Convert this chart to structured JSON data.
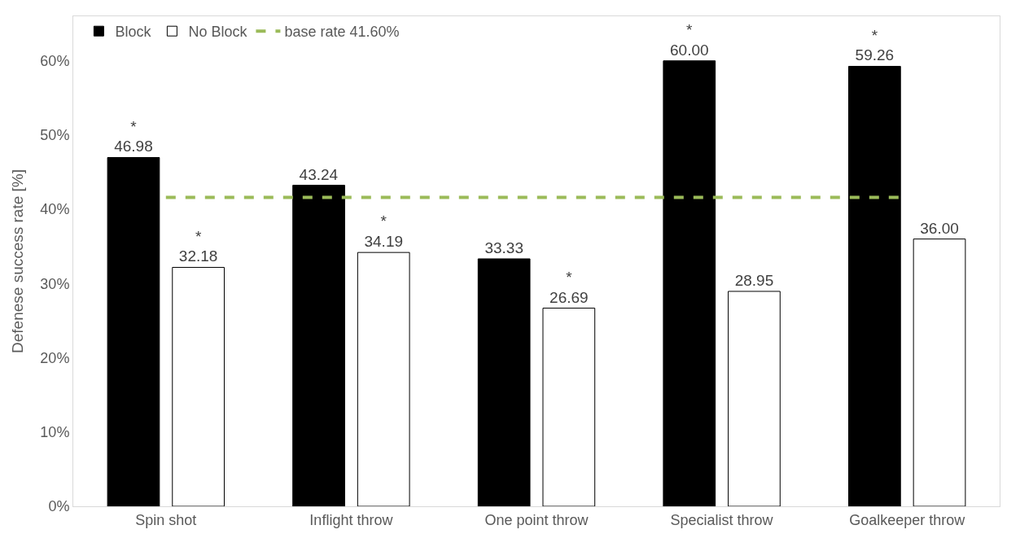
{
  "chart_data": {
    "type": "bar",
    "ylabel": "Defenese success rate [%]",
    "categories": [
      "Spin shot",
      "Inflight throw",
      "One point throw",
      "Specialist throw",
      "Goalkeeper throw"
    ],
    "series": [
      {
        "name": "Block",
        "color": "#000000",
        "values": [
          46.98,
          43.24,
          33.33,
          60.0,
          59.26
        ],
        "value_labels": [
          "*\n46.98",
          "43.24",
          "33.33",
          "*\n60.00",
          "*\n59.26"
        ]
      },
      {
        "name": "No Block",
        "color": "#ffffff",
        "values": [
          32.18,
          34.19,
          26.69,
          28.95,
          36.0
        ],
        "value_labels": [
          "*\n32.18",
          "*\n34.19",
          "*\n26.69",
          "28.95",
          "36.00"
        ]
      }
    ],
    "ylim": [
      0,
      66
    ],
    "yticks": [
      {
        "value": 0,
        "label": "0%"
      },
      {
        "value": 10,
        "label": "10%"
      },
      {
        "value": 20,
        "label": "20%"
      },
      {
        "value": 30,
        "label": "30%"
      },
      {
        "value": 40,
        "label": "40%"
      },
      {
        "value": 50,
        "label": "50%"
      },
      {
        "value": 60,
        "label": "60%"
      }
    ],
    "ref_lines": [
      {
        "axis": "y",
        "value": 41.6,
        "label": "base rate 41.60%",
        "color": "#9bbb59",
        "line_style": "dashed"
      }
    ],
    "legend": "top left"
  }
}
